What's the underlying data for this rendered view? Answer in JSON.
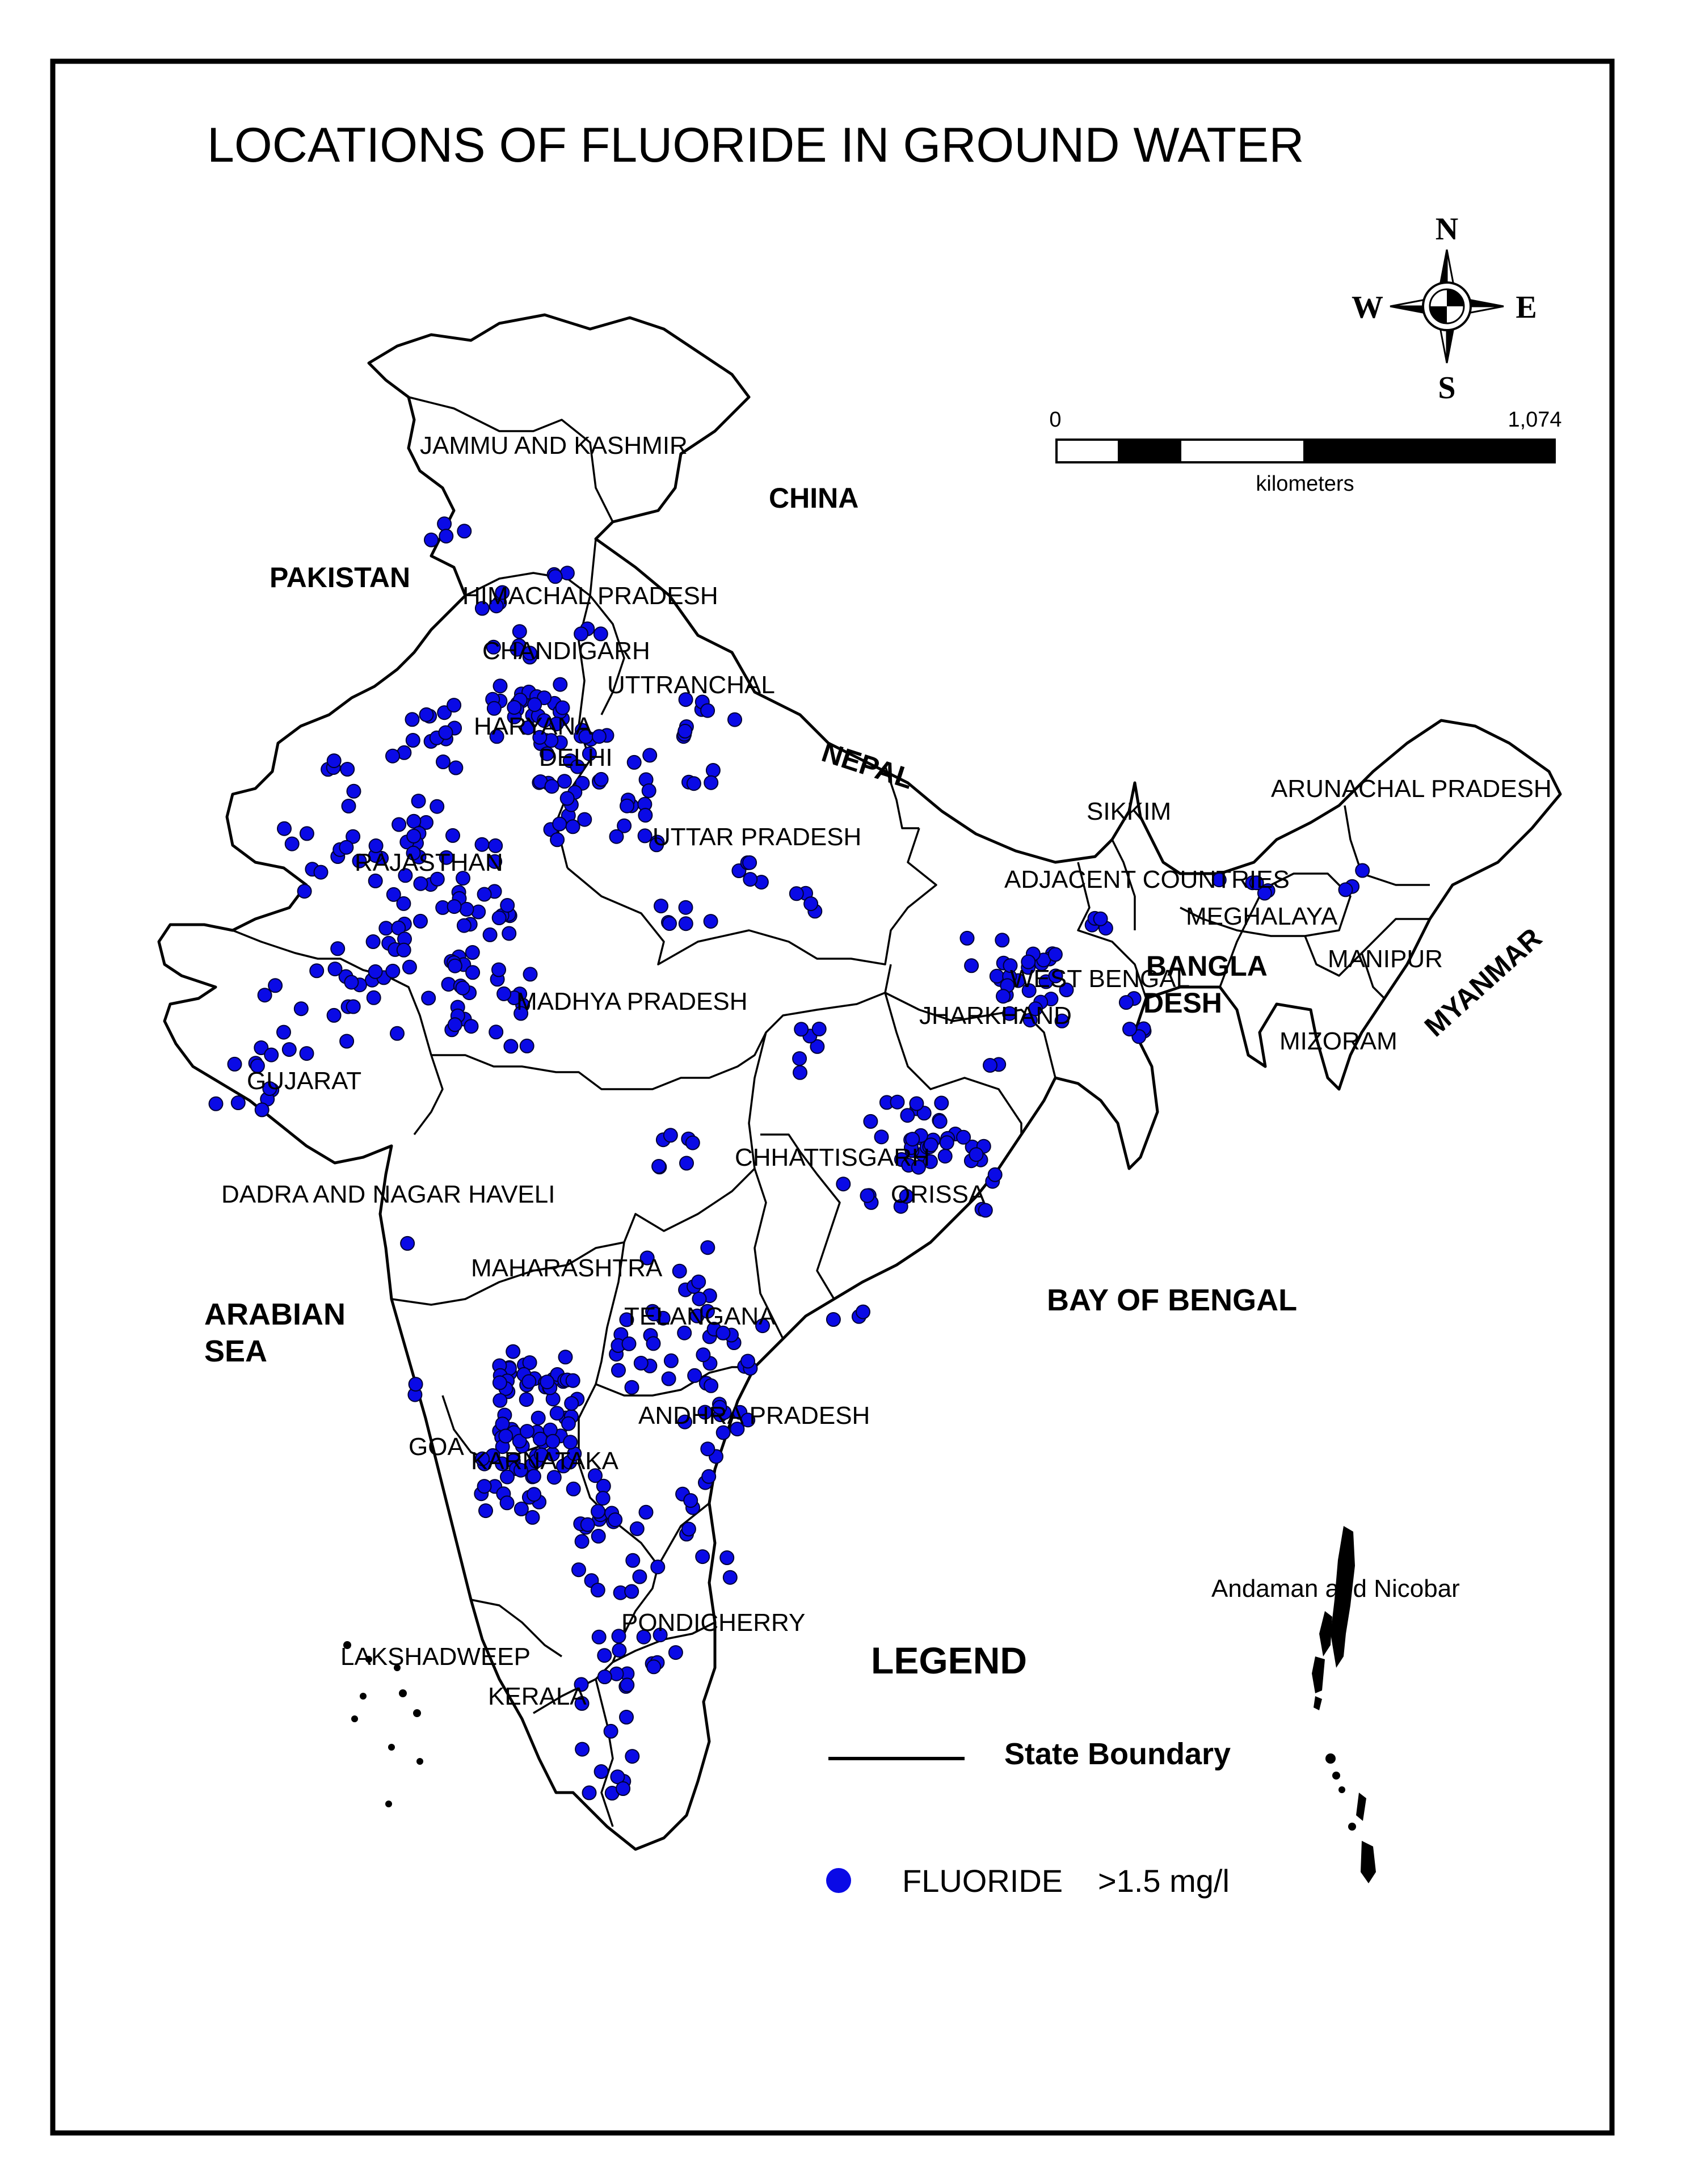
{
  "title": "LOCATIONS OF FLUORIDE IN GROUND WATER",
  "compass": {
    "north": "N",
    "south": "S",
    "east": "E",
    "west": "W"
  },
  "scale_bar": {
    "start_label": "0",
    "end_label": "1,074",
    "unit_label": "kilometers"
  },
  "countries": {
    "china": "CHINA",
    "pakistan": "PAKISTAN",
    "nepal": "NEPAL",
    "bangladesh_line1": "BANGLA",
    "bangladesh_line2": "DESH",
    "myanmar": "MYANMAR"
  },
  "seas": {
    "arabian_line1": "ARABIAN",
    "arabian_line2": "SEA",
    "bay_of_bengal": "BAY OF BENGAL"
  },
  "states": {
    "jammu_kashmir": "JAMMU AND KASHMIR",
    "himachal": "HIMACHAL PRADESH",
    "chandigarh": "CHANDIGARH",
    "uttaranchal": "UTTRANCHAL",
    "haryana": "HARYANA",
    "delhi": "DELHI",
    "rajasthan": "RAJASTHAN",
    "uttar_pradesh": "UTTAR PRADESH",
    "sikkim": "SIKKIM",
    "arunachal": "ARUNACHAL PRADESH",
    "adjacent": "ADJACENT COUNTRIES",
    "meghalaya": "MEGHALAYA",
    "manipur": "MANIPUR",
    "west_bengal": "WEST BENGAL",
    "jharkhand": "JHARKHAND",
    "mizoram": "MIZORAM",
    "madhya_pradesh": "MADHYA PRADESH",
    "gujarat": "GUJARAT",
    "chhattisgarh": "CHHATTISGARH",
    "orissa": "ORISSA",
    "dadra": "DADRA AND NAGAR HAVELI",
    "maharashtra": "MAHARASHTRA",
    "telangana": "TELANGANA",
    "andhra": "ANDHRA PRADESH",
    "goa": "GOA",
    "karnataka": "KARNATAKA",
    "andaman": "Andaman and Nicobar",
    "pondicherry": "PONDICHERRY",
    "lakshadweep": "LAKSHADWEEP",
    "kerala": "KERALA"
  },
  "legend": {
    "title": "LEGEND",
    "boundary_label": "State Boundary",
    "fluoride_label": "FLUORIDE",
    "fluoride_threshold": ">1.5 mg/l"
  },
  "colors": {
    "point_fill": "#0a0ae6",
    "point_stroke": "#000033",
    "line": "#000000",
    "background": "#ffffff"
  }
}
